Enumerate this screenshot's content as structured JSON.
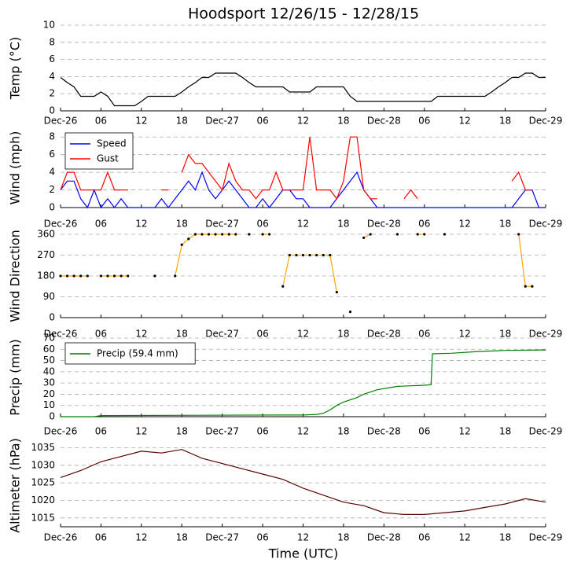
{
  "chart_data": [
    {
      "type": "line",
      "title": "Hoodsport 12/26/15 - 12/28/15",
      "ylabel": "Temp ($^\\circ$C)",
      "grid": true,
      "xlim": [
        0,
        72
      ],
      "ylim": [
        0,
        10
      ],
      "yticks": [
        0,
        2,
        4,
        6,
        8,
        10
      ],
      "xticks": [
        {
          "value": 0,
          "label": "Dec-26"
        },
        {
          "value": 6,
          "label": "06"
        },
        {
          "value": 12,
          "label": "12"
        },
        {
          "value": 18,
          "label": "18"
        },
        {
          "value": 24,
          "label": "Dec-27"
        },
        {
          "value": 30,
          "label": "06"
        },
        {
          "value": 36,
          "label": "12"
        },
        {
          "value": 42,
          "label": "18"
        },
        {
          "value": 48,
          "label": "Dec-28"
        },
        {
          "value": 54,
          "label": "06"
        },
        {
          "value": 60,
          "label": "12"
        },
        {
          "value": 66,
          "label": "18"
        },
        {
          "value": 72,
          "label": "Dec-29"
        }
      ],
      "x": [
        0,
        1,
        2,
        3,
        4,
        5,
        6,
        7,
        8,
        9,
        10,
        11,
        12,
        13,
        14,
        15,
        16,
        17,
        18,
        19,
        20,
        21,
        22,
        23,
        24,
        25,
        26,
        27,
        28,
        29,
        30,
        31,
        32,
        33,
        34,
        35,
        36,
        37,
        38,
        39,
        40,
        41,
        42,
        43,
        44,
        45,
        46,
        47,
        48,
        49,
        50,
        51,
        52,
        53,
        54,
        55,
        56,
        57,
        58,
        59,
        60,
        61,
        62,
        63,
        64,
        65,
        66,
        67,
        68,
        69,
        70,
        71,
        72
      ],
      "series": [
        {
          "color": "#000000",
          "values": [
            3.9,
            3.3,
            2.8,
            1.7,
            1.7,
            1.7,
            2.2,
            1.7,
            0.6,
            0.6,
            0.6,
            0.6,
            1.1,
            1.7,
            1.7,
            1.7,
            1.7,
            1.7,
            2.2,
            2.8,
            3.3,
            3.9,
            3.9,
            4.4,
            4.4,
            4.4,
            4.4,
            3.9,
            3.3,
            2.8,
            2.8,
            2.8,
            2.8,
            2.8,
            2.2,
            2.2,
            2.2,
            2.2,
            2.8,
            2.8,
            2.8,
            2.8,
            2.8,
            1.7,
            1.1,
            1.1,
            1.1,
            1.1,
            1.1,
            1.1,
            1.1,
            1.1,
            1.1,
            1.1,
            1.1,
            1.1,
            1.7,
            1.7,
            1.7,
            1.7,
            1.7,
            1.7,
            1.7,
            1.7,
            2.2,
            2.8,
            3.3,
            3.9,
            3.9,
            4.4,
            4.4,
            3.9,
            3.9
          ]
        }
      ]
    },
    {
      "type": "line",
      "ylabel": "Wind (mph)",
      "grid": true,
      "legend": "upper left",
      "xlim": [
        0,
        72
      ],
      "ylim": [
        0,
        9
      ],
      "yticks": [
        0,
        2,
        4,
        6,
        8
      ],
      "xticks": [
        {
          "value": 0,
          "label": "Dec-26"
        },
        {
          "value": 6,
          "label": "06"
        },
        {
          "value": 12,
          "label": "12"
        },
        {
          "value": 18,
          "label": "18"
        },
        {
          "value": 24,
          "label": "Dec-27"
        },
        {
          "value": 30,
          "label": "06"
        },
        {
          "value": 36,
          "label": "12"
        },
        {
          "value": 42,
          "label": "18"
        },
        {
          "value": 48,
          "label": "Dec-28"
        },
        {
          "value": 54,
          "label": "06"
        },
        {
          "value": 60,
          "label": "12"
        },
        {
          "value": 66,
          "label": "18"
        },
        {
          "value": 72,
          "label": "Dec-29"
        }
      ],
      "x": [
        0,
        1,
        2,
        3,
        4,
        5,
        6,
        7,
        8,
        9,
        10,
        11,
        12,
        13,
        14,
        15,
        16,
        17,
        18,
        19,
        20,
        21,
        22,
        23,
        24,
        25,
        26,
        27,
        28,
        29,
        30,
        31,
        32,
        33,
        34,
        35,
        36,
        37,
        38,
        39,
        40,
        41,
        42,
        43,
        44,
        45,
        46,
        47,
        48,
        49,
        50,
        51,
        52,
        53,
        54,
        55,
        56,
        57,
        58,
        59,
        60,
        61,
        62,
        63,
        64,
        65,
        66,
        67,
        68,
        69,
        70,
        71,
        72
      ],
      "series": [
        {
          "name": "Speed",
          "color": "#0000ff",
          "values": [
            2,
            3,
            3,
            1,
            0,
            2,
            0,
            1,
            0,
            1,
            0,
            0,
            0,
            0,
            0,
            1,
            0,
            1,
            2,
            3,
            2,
            4,
            2,
            1,
            2,
            3,
            2,
            1,
            0,
            0,
            1,
            0,
            1,
            2,
            2,
            1,
            1,
            0,
            0,
            0,
            0,
            1,
            2,
            3,
            4,
            2,
            1,
            0,
            0,
            0,
            0,
            0,
            0,
            0,
            0,
            0,
            0,
            0,
            0,
            0,
            0,
            0,
            0,
            0,
            0,
            0,
            0,
            0,
            1,
            2,
            2,
            0,
            0
          ]
        },
        {
          "name": "Gust",
          "color": "#ff0000",
          "values": [
            2,
            4,
            4,
            2,
            2,
            2,
            2,
            4,
            2,
            2,
            2,
            null,
            2,
            null,
            null,
            2,
            2,
            null,
            4,
            6,
            5,
            5,
            4,
            3,
            2,
            5,
            3,
            2,
            2,
            1,
            2,
            2,
            4,
            2,
            2,
            2,
            2,
            8,
            2,
            2,
            2,
            1,
            3,
            8,
            8,
            2,
            1,
            1,
            null,
            null,
            null,
            1,
            2,
            1,
            null,
            null,
            null,
            null,
            null,
            null,
            null,
            null,
            null,
            null,
            null,
            null,
            null,
            3,
            4,
            2,
            2,
            null,
            null
          ]
        }
      ]
    },
    {
      "type": "scatter",
      "ylabel": "Wind Direction",
      "grid": true,
      "xlim": [
        0,
        72
      ],
      "ylim": [
        0,
        360
      ],
      "yticks": [
        0,
        90,
        180,
        270,
        360
      ],
      "xticks": [
        {
          "value": 0,
          "label": "Dec-26"
        },
        {
          "value": 6,
          "label": "06"
        },
        {
          "value": 12,
          "label": "12"
        },
        {
          "value": 18,
          "label": "18"
        },
        {
          "value": 24,
          "label": "Dec-27"
        },
        {
          "value": 30,
          "label": "06"
        },
        {
          "value": 36,
          "label": "12"
        },
        {
          "value": 42,
          "label": "18"
        },
        {
          "value": 48,
          "label": "Dec-28"
        },
        {
          "value": 54,
          "label": "06"
        },
        {
          "value": 60,
          "label": "12"
        },
        {
          "value": 66,
          "label": "18"
        },
        {
          "value": 72,
          "label": "Dec-29"
        }
      ],
      "x": [
        0,
        1,
        2,
        3,
        4,
        5,
        6,
        7,
        8,
        9,
        10,
        11,
        12,
        13,
        14,
        15,
        16,
        17,
        18,
        19,
        20,
        21,
        22,
        23,
        24,
        25,
        26,
        27,
        28,
        29,
        30,
        31,
        32,
        33,
        34,
        35,
        36,
        37,
        38,
        39,
        40,
        41,
        42,
        43,
        44,
        45,
        46,
        47,
        48,
        49,
        50,
        51,
        52,
        53,
        54,
        55,
        56,
        57,
        58,
        59,
        60,
        61,
        62,
        63,
        64,
        65,
        66,
        67,
        68,
        69,
        70,
        71,
        72
      ],
      "series": [
        {
          "color": "#ffa500",
          "marker_color": "#000000",
          "values": [
            180,
            180,
            180,
            180,
            180,
            null,
            180,
            180,
            180,
            180,
            180,
            null,
            null,
            null,
            180,
            null,
            null,
            180,
            315,
            340,
            360,
            360,
            360,
            360,
            360,
            360,
            360,
            null,
            360,
            null,
            360,
            360,
            null,
            135,
            270,
            270,
            270,
            270,
            270,
            270,
            270,
            110,
            null,
            25,
            null,
            345,
            360,
            null,
            null,
            null,
            360,
            null,
            null,
            360,
            360,
            null,
            null,
            360,
            null,
            null,
            null,
            null,
            null,
            null,
            null,
            null,
            null,
            null,
            360,
            135,
            135,
            null,
            null
          ]
        }
      ]
    },
    {
      "type": "line",
      "ylabel": "Precip (mm)",
      "grid": true,
      "legend": "upper left",
      "xlim": [
        0,
        72
      ],
      "ylim": [
        0,
        70
      ],
      "yticks": [
        0,
        10,
        20,
        30,
        40,
        50,
        60,
        70
      ],
      "xticks": [
        {
          "value": 0,
          "label": "Dec-26"
        },
        {
          "value": 6,
          "label": "06"
        },
        {
          "value": 12,
          "label": "12"
        },
        {
          "value": 18,
          "label": "18"
        },
        {
          "value": 24,
          "label": "Dec-27"
        },
        {
          "value": 30,
          "label": "06"
        },
        {
          "value": 36,
          "label": "12"
        },
        {
          "value": 42,
          "label": "18"
        },
        {
          "value": 48,
          "label": "Dec-28"
        },
        {
          "value": 54,
          "label": "06"
        },
        {
          "value": 60,
          "label": "12"
        },
        {
          "value": 66,
          "label": "18"
        },
        {
          "value": 72,
          "label": "Dec-29"
        }
      ],
      "x": [
        0,
        5,
        6,
        32,
        36,
        38,
        39,
        40,
        41,
        42,
        43,
        44,
        45,
        46,
        47,
        48,
        49,
        50,
        52,
        54,
        55,
        55.2,
        58,
        62,
        66,
        72
      ],
      "series": [
        {
          "name": "Precip (59.4 mm)",
          "color": "#008000",
          "values": [
            0,
            0,
            1,
            1.5,
            1.5,
            2,
            3,
            6,
            10,
            13,
            15,
            17,
            20,
            22,
            24,
            25,
            26,
            27,
            27.5,
            28,
            28.5,
            56,
            56.5,
            58,
            59,
            59.4
          ]
        }
      ]
    },
    {
      "type": "line",
      "ylabel": "Altimeter (hPa)",
      "xlabel": "Time (UTC)",
      "grid": true,
      "xlim": [
        0,
        72
      ],
      "ylim": [
        1012.5,
        1036
      ],
      "yticks": [
        1015,
        1020,
        1025,
        1030,
        1035
      ],
      "xticks": [
        {
          "value": 0,
          "label": "Dec-26"
        },
        {
          "value": 6,
          "label": "06"
        },
        {
          "value": 12,
          "label": "12"
        },
        {
          "value": 18,
          "label": "18"
        },
        {
          "value": 24,
          "label": "Dec-27"
        },
        {
          "value": 30,
          "label": "06"
        },
        {
          "value": 36,
          "label": "12"
        },
        {
          "value": 42,
          "label": "18"
        },
        {
          "value": 48,
          "label": "Dec-28"
        },
        {
          "value": 54,
          "label": "06"
        },
        {
          "value": 60,
          "label": "12"
        },
        {
          "value": 66,
          "label": "18"
        },
        {
          "value": 72,
          "label": "Dec-29"
        }
      ],
      "x": [
        0,
        3,
        6,
        9,
        12,
        15,
        18,
        21,
        24,
        27,
        30,
        33,
        36,
        39,
        42,
        45,
        48,
        51,
        54,
        57,
        60,
        63,
        66,
        69,
        72
      ],
      "series": [
        {
          "color": "#5a0000",
          "values": [
            1026.5,
            1028.5,
            1031,
            1032.5,
            1034,
            1033.5,
            1034.5,
            1032,
            1030.5,
            1029,
            1027.5,
            1026,
            1023.5,
            1021.5,
            1019.5,
            1018.5,
            1016.5,
            1016,
            1016,
            1016.5,
            1017,
            1018,
            1019,
            1020.5,
            1019.5
          ]
        }
      ]
    }
  ]
}
